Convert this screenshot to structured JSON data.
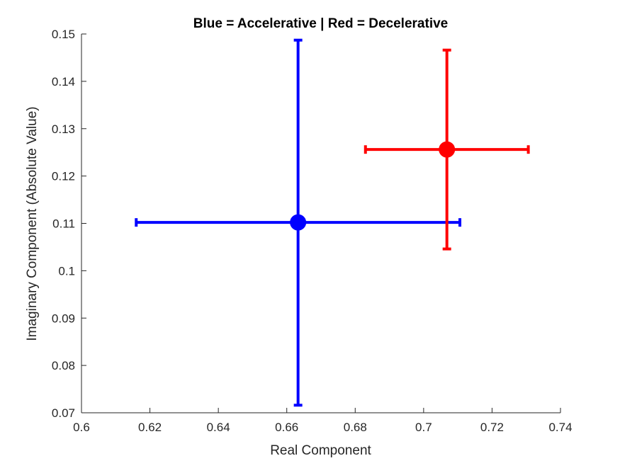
{
  "chart_data": {
    "type": "scatter",
    "title": "Blue = Accelerative | Red = Decelerative",
    "xlabel": "Real Component",
    "ylabel": "Imaginary Component (Absolute Value)",
    "xlim": [
      0.6,
      0.74
    ],
    "ylim": [
      0.07,
      0.15
    ],
    "xticks": [
      "0.6",
      "0.62",
      "0.64",
      "0.66",
      "0.68",
      "0.7",
      "0.72",
      "0.74"
    ],
    "yticks": [
      "0.07",
      "0.08",
      "0.09",
      "0.1",
      "0.11",
      "0.12",
      "0.13",
      "0.14",
      "0.15"
    ],
    "grid": false,
    "legend": "none",
    "series": [
      {
        "color": "#0000ff",
        "x": 0.6633,
        "y": 0.1102,
        "x_err_low": 0.616,
        "x_err_high": 0.7106,
        "y_err_low": 0.0716,
        "y_err_high": 0.1487
      },
      {
        "color": "#ff0000",
        "x": 0.7068,
        "y": 0.1256,
        "x_err_low": 0.683,
        "x_err_high": 0.7306,
        "y_err_low": 0.1046,
        "y_err_high": 0.1466
      }
    ]
  }
}
